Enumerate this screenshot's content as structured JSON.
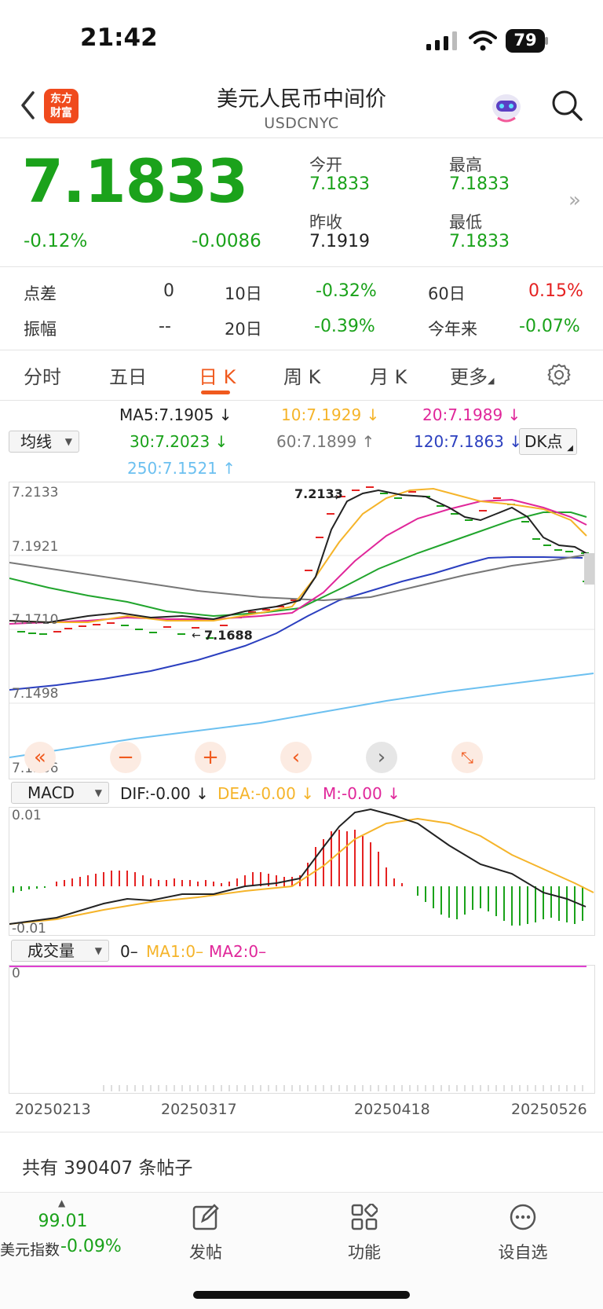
{
  "status": {
    "time": "21:42",
    "battery": "79"
  },
  "header": {
    "logo_text_1": "东方",
    "logo_text_2": "财富",
    "title": "美元人民币中间价",
    "code": "USDCNYC"
  },
  "quote": {
    "price": "7.1833",
    "change_pct": "-0.12%",
    "change": "-0.0086",
    "open_label": "今开",
    "open": "7.1833",
    "high_label": "最高",
    "high": "7.1833",
    "prev_label": "昨收",
    "prev": "7.1919",
    "low_label": "最低",
    "low": "7.1833"
  },
  "stats": {
    "spread_label": "点差",
    "spread": "0",
    "d10_label": "10日",
    "d10": "-0.32%",
    "d60_label": "60日",
    "d60": "0.15%",
    "amp_label": "振幅",
    "amp": "--",
    "d20_label": "20日",
    "d20": "-0.39%",
    "ytd_label": "今年来",
    "ytd": "-0.07%"
  },
  "tabs": [
    "分时",
    "五日",
    "日 K",
    "周 K",
    "月 K",
    "更多"
  ],
  "ma": {
    "selector": "均线",
    "ma5": "MA5:7.1905 ↓",
    "ma10": "10:7.1929 ↓",
    "ma20": "20:7.1989 ↓",
    "ma30": "30:7.2023 ↓",
    "ma60": "60:7.1899 ↑",
    "ma120": "120:7.1863 ↓",
    "ma250": "250:7.1521 ↑",
    "dk": "DK点"
  },
  "kchart": {
    "y_labels": [
      "7.2133",
      "7.1921",
      "7.1710",
      "7.1498",
      "7.1286"
    ],
    "high_marker": "7.2133",
    "low_marker": "7.1688",
    "colors": {
      "ma5": "#222222",
      "ma10": "#f5b42a",
      "ma20": "#e0279a",
      "ma30": "#21a52d",
      "ma60": "#777777",
      "ma120": "#2b3fbf",
      "ma250": "#6cc0f0",
      "up": "#e52222",
      "down": "#1aa21a"
    }
  },
  "macd": {
    "selector": "MACD",
    "dif": "DIF:-0.00 ↓",
    "dea": "DEA:-0.00 ↓",
    "m": "M:-0.00 ↓",
    "y_top": "0.01",
    "y_bottom": "-0.01"
  },
  "volume": {
    "selector": "成交量",
    "v": "0–",
    "ma1": "MA1:0–",
    "ma2": "MA2:0–",
    "y": "0"
  },
  "dates": [
    "20250213",
    "20250317",
    "20250418",
    "20250526"
  ],
  "posts": "共有 390407 条帖子",
  "bottom": {
    "index_value": "99.01",
    "index_label": "美元指数",
    "index_change": "-0.09%",
    "post": "发帖",
    "func": "功能",
    "watch": "设自选"
  }
}
